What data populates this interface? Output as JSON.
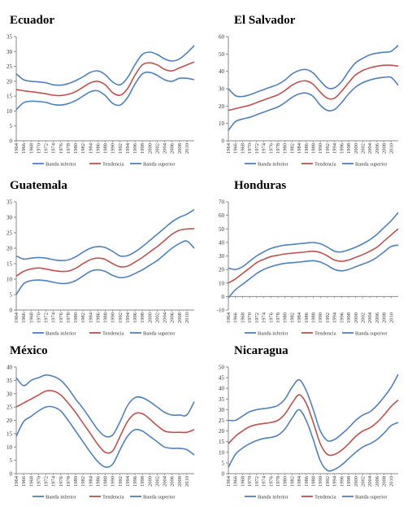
{
  "chart_data": [
    {
      "type": "line",
      "title": "Ecuador",
      "x": [
        1964,
        1966,
        1968,
        1970,
        1972,
        1974,
        1976,
        1978,
        1980,
        1982,
        1984,
        1986,
        1988,
        1990,
        1992,
        1994,
        1996,
        1998,
        2000,
        2002,
        2004,
        2006,
        2008,
        2010,
        2012
      ],
      "ylim": [
        0,
        35
      ],
      "yticks": [
        0,
        5,
        10,
        15,
        20,
        25,
        30,
        35
      ],
      "series": [
        {
          "name": "Banda inferior",
          "values": [
            10.5,
            12.8,
            13.3,
            13.2,
            12.9,
            12.2,
            12.0,
            12.5,
            13.5,
            15.0,
            16.5,
            16.8,
            15.2,
            12.6,
            12.0,
            14.5,
            19.0,
            22.5,
            23.0,
            22.0,
            20.5,
            20.0,
            21.0,
            21.0,
            20.5
          ]
        },
        {
          "name": "Tendencia",
          "values": [
            17.2,
            16.8,
            16.5,
            16.2,
            15.8,
            15.3,
            15.2,
            15.6,
            16.5,
            18.0,
            19.5,
            20.0,
            18.8,
            16.2,
            15.3,
            17.5,
            22.0,
            25.5,
            26.2,
            25.5,
            24.0,
            23.5,
            24.5,
            25.5,
            26.5
          ]
        },
        {
          "name": "Banda superior",
          "values": [
            22.5,
            20.5,
            20.0,
            19.8,
            19.5,
            18.8,
            18.7,
            19.2,
            20.2,
            21.5,
            23.0,
            23.5,
            22.2,
            19.8,
            18.8,
            21.2,
            25.5,
            29.0,
            29.8,
            29.0,
            27.5,
            26.8,
            27.5,
            29.5,
            32.0
          ]
        }
      ]
    },
    {
      "type": "line",
      "title": "El Salvador",
      "x": [
        1964,
        1966,
        1968,
        1970,
        1972,
        1974,
        1976,
        1978,
        1980,
        1982,
        1984,
        1986,
        1988,
        1990,
        1992,
        1994,
        1996,
        1998,
        2000,
        2002,
        2004,
        2006,
        2008,
        2010,
        2012
      ],
      "ylim": [
        0,
        60
      ],
      "yticks": [
        0,
        10,
        20,
        30,
        40,
        50,
        60
      ],
      "series": [
        {
          "name": "Banda inferior",
          "values": [
            6.0,
            11.0,
            12.5,
            13.5,
            15.0,
            16.5,
            18.0,
            19.5,
            22.0,
            25.0,
            27.0,
            27.5,
            25.5,
            20.5,
            17.5,
            18.0,
            22.0,
            27.0,
            31.0,
            33.5,
            35.0,
            36.0,
            36.5,
            36.5,
            32.0
          ]
        },
        {
          "name": "Tendencia",
          "values": [
            17.5,
            18.5,
            19.5,
            20.5,
            22.0,
            23.5,
            25.0,
            26.5,
            29.0,
            32.0,
            34.0,
            34.5,
            32.5,
            28.0,
            24.5,
            24.5,
            28.5,
            33.5,
            38.0,
            40.5,
            42.0,
            43.0,
            43.5,
            43.5,
            43.0
          ]
        },
        {
          "name": "Banda superior",
          "values": [
            30.0,
            26.0,
            25.5,
            26.5,
            28.0,
            29.5,
            31.0,
            32.5,
            35.0,
            38.5,
            40.5,
            41.0,
            39.0,
            34.5,
            30.5,
            30.5,
            34.0,
            40.0,
            45.0,
            47.5,
            49.5,
            50.5,
            51.0,
            51.5,
            55.0
          ]
        }
      ]
    },
    {
      "type": "line",
      "title": "Guatemala",
      "x": [
        1964,
        1966,
        1968,
        1970,
        1972,
        1974,
        1976,
        1978,
        1980,
        1982,
        1984,
        1986,
        1988,
        1990,
        1992,
        1994,
        1996,
        1998,
        2000,
        2002,
        2004,
        2006,
        2008,
        2010,
        2012
      ],
      "ylim": [
        0,
        35
      ],
      "yticks": [
        0,
        5,
        10,
        15,
        20,
        25,
        30,
        35
      ],
      "series": [
        {
          "name": "Banda inferior",
          "values": [
            5.0,
            8.5,
            9.5,
            9.7,
            9.5,
            9.0,
            8.6,
            8.7,
            9.5,
            11.0,
            12.5,
            13.0,
            12.5,
            11.2,
            10.5,
            10.8,
            11.8,
            13.0,
            14.5,
            16.0,
            18.0,
            20.0,
            21.5,
            22.3,
            20.0
          ]
        },
        {
          "name": "Tendencia",
          "values": [
            11.0,
            12.5,
            13.3,
            13.6,
            13.3,
            12.8,
            12.5,
            12.6,
            13.5,
            15.0,
            16.3,
            16.8,
            16.4,
            15.0,
            14.0,
            14.2,
            15.5,
            17.0,
            18.8,
            20.5,
            22.5,
            24.5,
            25.8,
            26.2,
            26.3
          ]
        },
        {
          "name": "Banda superior",
          "values": [
            17.5,
            16.5,
            16.8,
            17.0,
            16.8,
            16.3,
            16.0,
            16.2,
            17.2,
            18.7,
            20.0,
            20.5,
            20.2,
            19.0,
            17.5,
            17.6,
            18.8,
            20.5,
            22.5,
            24.5,
            26.5,
            28.5,
            30.0,
            31.0,
            32.5
          ]
        }
      ]
    },
    {
      "type": "line",
      "title": "Honduras",
      "x": [
        1964,
        1966,
        1968,
        1970,
        1972,
        1974,
        1976,
        1978,
        1980,
        1982,
        1984,
        1986,
        1988,
        1990,
        1992,
        1994,
        1996,
        1998,
        2000,
        2002,
        2004,
        2006,
        2008,
        2010,
        2012
      ],
      "ylim": [
        -10,
        70
      ],
      "yticks": [
        -10,
        0,
        10,
        20,
        30,
        40,
        50,
        60,
        70
      ],
      "series": [
        {
          "name": "Banda inferior",
          "values": [
            -1,
            5,
            9,
            13,
            17,
            20,
            22,
            23.5,
            24.5,
            25,
            25.5,
            26,
            26.5,
            25.5,
            23,
            20,
            19,
            20,
            22,
            24,
            26,
            29,
            33,
            37,
            38
          ]
        },
        {
          "name": "Tendencia",
          "values": [
            10,
            13,
            17,
            21,
            25,
            27.5,
            29.5,
            30.5,
            31.5,
            32,
            32.5,
            33,
            33.5,
            32.5,
            30,
            27,
            26,
            27,
            29,
            31,
            33.5,
            36.5,
            41,
            45.5,
            50
          ]
        },
        {
          "name": "Banda superior",
          "values": [
            21,
            20,
            22,
            26,
            30,
            33,
            35.5,
            37,
            38,
            38.5,
            39,
            39.5,
            40,
            39,
            36.5,
            33.5,
            33,
            34.5,
            36.5,
            39,
            42,
            46,
            51,
            56,
            62
          ]
        }
      ]
    },
    {
      "type": "line",
      "title": "México",
      "x": [
        1964,
        1966,
        1968,
        1970,
        1972,
        1974,
        1976,
        1978,
        1980,
        1982,
        1984,
        1986,
        1988,
        1990,
        1992,
        1994,
        1996,
        1998,
        2000,
        2002,
        2004,
        2006,
        2008,
        2010,
        2012
      ],
      "ylim": [
        0,
        40
      ],
      "yticks": [
        0,
        5,
        10,
        15,
        20,
        25,
        30,
        35,
        40
      ],
      "series": [
        {
          "name": "Banda inferior",
          "values": [
            14,
            19.5,
            21.5,
            23.5,
            25,
            25,
            23.5,
            20,
            16,
            12,
            8,
            4.5,
            2.5,
            3.5,
            9,
            14,
            16.5,
            16,
            14,
            12,
            10,
            9.5,
            9.5,
            9,
            7
          ]
        },
        {
          "name": "Tendencia",
          "values": [
            25,
            26.5,
            28,
            29.5,
            31,
            31,
            29.5,
            26.5,
            23,
            19,
            15,
            11,
            8,
            8.5,
            14,
            19.5,
            22.5,
            22.5,
            20.5,
            18,
            16,
            15.5,
            15.5,
            15.5,
            16.5
          ]
        },
        {
          "name": "Banda superior",
          "values": [
            36,
            33,
            35,
            36,
            37,
            36.5,
            35,
            32,
            28,
            24.5,
            20.5,
            16.5,
            14,
            14.5,
            19.5,
            25.5,
            28.5,
            28.5,
            27,
            25,
            23,
            22,
            22,
            22,
            27
          ]
        }
      ]
    },
    {
      "type": "line",
      "title": "Nicaragua",
      "x": [
        1964,
        1966,
        1968,
        1970,
        1972,
        1974,
        1976,
        1978,
        1980,
        1982,
        1984,
        1986,
        1988,
        1990,
        1992,
        1994,
        1996,
        1998,
        2000,
        2002,
        2004,
        2006,
        2008,
        2010,
        2012
      ],
      "ylim": [
        0,
        50
      ],
      "yticks": [
        0,
        5,
        10,
        15,
        20,
        25,
        30,
        35,
        40,
        45,
        50
      ],
      "series": [
        {
          "name": "Banda inferior",
          "values": [
            3,
            9,
            12,
            14,
            15.5,
            16.5,
            17,
            18,
            21,
            26,
            30,
            25,
            16,
            6,
            1.5,
            2,
            4,
            7,
            10,
            12.5,
            14,
            16,
            19,
            22.5,
            24
          ]
        },
        {
          "name": "Tendencia",
          "values": [
            14,
            17.5,
            20,
            22,
            23,
            23.5,
            24,
            25,
            28,
            33,
            37,
            33,
            24,
            14,
            9,
            9,
            11,
            14,
            17.5,
            20,
            21.5,
            24,
            27.5,
            31.5,
            34.5
          ]
        },
        {
          "name": "Banda superior",
          "values": [
            25,
            25,
            27,
            29,
            30,
            30.5,
            31,
            32,
            35,
            40.5,
            44,
            39,
            30,
            20,
            15.5,
            16,
            18.5,
            21.5,
            25,
            27.5,
            29,
            32,
            36,
            40.5,
            46.5
          ]
        }
      ]
    }
  ],
  "legend": [
    "Banda inferior",
    "Tendencia",
    "Banda superior"
  ],
  "colors": {
    "Banda inferior": "#4f81bd",
    "Tendencia": "#c0504d",
    "Banda superior": "#4f81bd"
  }
}
